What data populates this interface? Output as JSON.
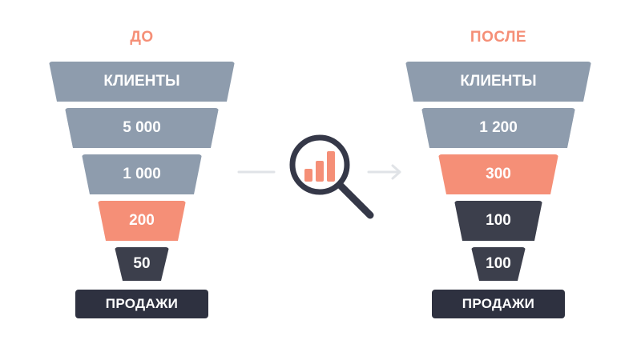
{
  "colors": {
    "accent": "#f58f77",
    "grey": "#8e9cad",
    "dark": "#3c3f4c",
    "line": "#e0e3e7"
  },
  "before": {
    "heading": "ДО",
    "levels": [
      {
        "label": "КЛИЕНТЫ",
        "tone": "grey"
      },
      {
        "label": "5 000",
        "tone": "grey"
      },
      {
        "label": "1 000",
        "tone": "grey"
      },
      {
        "label": "200",
        "tone": "accent"
      },
      {
        "label": "50",
        "tone": "dark"
      }
    ],
    "base_label": "ПРОДАЖИ"
  },
  "after": {
    "heading": "ПОСЛЕ",
    "levels": [
      {
        "label": "КЛИЕНТЫ",
        "tone": "grey"
      },
      {
        "label": "1 200",
        "tone": "grey"
      },
      {
        "label": "300",
        "tone": "accent"
      },
      {
        "label": "100",
        "tone": "dark"
      },
      {
        "label": "100",
        "tone": "dark"
      }
    ],
    "base_label": "ПРОДАЖИ"
  },
  "center_icon": "magnifier-chart-icon"
}
